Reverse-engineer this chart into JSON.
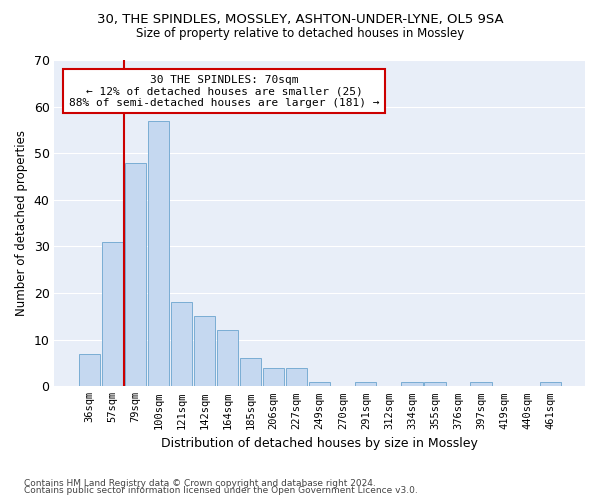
{
  "title1": "30, THE SPINDLES, MOSSLEY, ASHTON-UNDER-LYNE, OL5 9SA",
  "title2": "Size of property relative to detached houses in Mossley",
  "xlabel": "Distribution of detached houses by size in Mossley",
  "ylabel": "Number of detached properties",
  "categories": [
    "36sqm",
    "57sqm",
    "79sqm",
    "100sqm",
    "121sqm",
    "142sqm",
    "164sqm",
    "185sqm",
    "206sqm",
    "227sqm",
    "249sqm",
    "270sqm",
    "291sqm",
    "312sqm",
    "334sqm",
    "355sqm",
    "376sqm",
    "397sqm",
    "419sqm",
    "440sqm",
    "461sqm"
  ],
  "values": [
    7,
    31,
    48,
    57,
    18,
    15,
    12,
    6,
    4,
    4,
    1,
    0,
    1,
    0,
    1,
    1,
    0,
    1,
    0,
    0,
    1
  ],
  "bar_color": "#c5d8f0",
  "bar_edge_color": "#7aadd4",
  "vline_color": "#cc0000",
  "vline_x": 2,
  "annotation_title": "30 THE SPINDLES: 70sqm",
  "annotation_line1": "← 12% of detached houses are smaller (25)",
  "annotation_line2": "88% of semi-detached houses are larger (181) →",
  "annotation_box_edgecolor": "#cc0000",
  "ylim": [
    0,
    70
  ],
  "yticks": [
    0,
    10,
    20,
    30,
    40,
    50,
    60,
    70
  ],
  "footer1": "Contains HM Land Registry data © Crown copyright and database right 2024.",
  "footer2": "Contains public sector information licensed under the Open Government Licence v3.0.",
  "bg_color": "#e8eef8",
  "grid_color": "#ffffff"
}
